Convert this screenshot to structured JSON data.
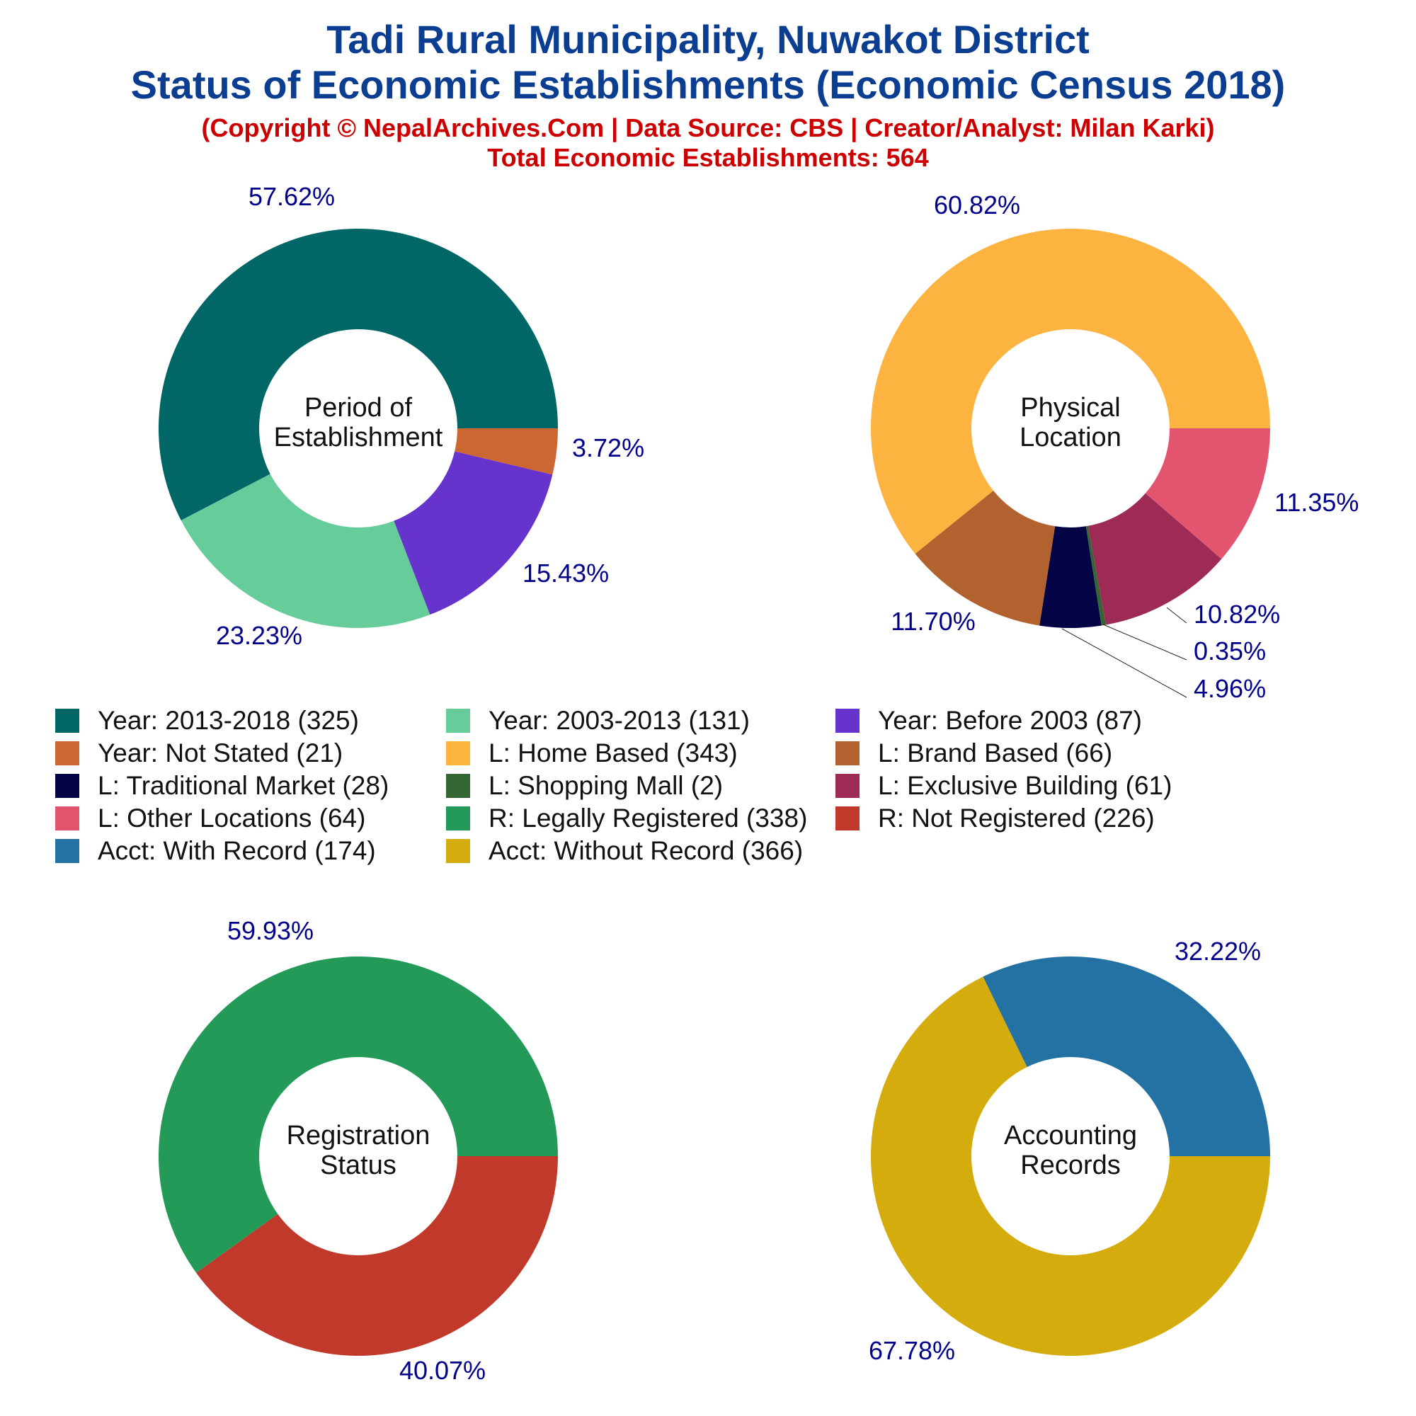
{
  "header": {
    "title_line1": "Tadi Rural Municipality, Nuwakot District",
    "title_line2": "Status of Economic Establishments (Economic Census 2018)",
    "credit": "(Copyright © NepalArchives.Com | Data Source: CBS | Creator/Analyst: Milan Karki)",
    "total": "Total Economic Establishments: 564"
  },
  "colors": {
    "title": "#0b3d91",
    "credit": "#cc0000",
    "percent_label": "#00008b"
  },
  "chart_data": [
    {
      "type": "pie",
      "style": "donut",
      "center_label": [
        "Period of",
        "Establishment"
      ],
      "slices": [
        {
          "label": "Year: 2013-2018",
          "value": 325,
          "percent": "57.62%",
          "color": "#016766"
        },
        {
          "label": "Year: 2003-2013",
          "value": 131,
          "percent": "23.23%",
          "color": "#66cc99"
        },
        {
          "label": "Year: Before 2003",
          "value": 87,
          "percent": "15.43%",
          "color": "#6633cc"
        },
        {
          "label": "Year: Not Stated",
          "value": 21,
          "percent": "3.72%",
          "color": "#cc6633"
        }
      ]
    },
    {
      "type": "pie",
      "style": "donut",
      "center_label": [
        "Physical",
        "Location"
      ],
      "slices": [
        {
          "label": "L: Home Based",
          "value": 343,
          "percent": "60.82%",
          "color": "#fcb33f"
        },
        {
          "label": "L: Brand Based",
          "value": 66,
          "percent": "11.70%",
          "color": "#b1622e"
        },
        {
          "label": "L: Traditional Market",
          "value": 28,
          "percent": "4.96%",
          "color": "#030346"
        },
        {
          "label": "L: Shopping Mall",
          "value": 2,
          "percent": "0.35%",
          "color": "#336633"
        },
        {
          "label": "L: Exclusive Building",
          "value": 61,
          "percent": "10.82%",
          "color": "#9e2a56"
        },
        {
          "label": "L: Other Locations",
          "value": 64,
          "percent": "11.35%",
          "color": "#e3546f"
        }
      ]
    },
    {
      "type": "pie",
      "style": "donut",
      "center_label": [
        "Registration",
        "Status"
      ],
      "slices": [
        {
          "label": "R: Legally Registered",
          "value": 338,
          "percent": "59.93%",
          "color": "#239a58"
        },
        {
          "label": "R: Not Registered",
          "value": 226,
          "percent": "40.07%",
          "color": "#c0392b"
        }
      ]
    },
    {
      "type": "pie",
      "style": "donut",
      "center_label": [
        "Accounting",
        "Records"
      ],
      "slices": [
        {
          "label": "Acct: With Record",
          "value": 174,
          "percent": "32.22%",
          "color": "#2471a3"
        },
        {
          "label": "Acct: Without Record",
          "value": 366,
          "percent": "67.78%",
          "color": "#d4ac0d"
        }
      ]
    }
  ],
  "legend": [
    {
      "text": "Year: 2013-2018 (325)",
      "color": "#016766"
    },
    {
      "text": "Year: 2003-2013 (131)",
      "color": "#66cc99"
    },
    {
      "text": "Year: Before 2003 (87)",
      "color": "#6633cc"
    },
    {
      "text": "Year: Not Stated (21)",
      "color": "#cc6633"
    },
    {
      "text": "L: Home Based (343)",
      "color": "#fcb33f"
    },
    {
      "text": "L: Brand Based (66)",
      "color": "#b1622e"
    },
    {
      "text": "L: Traditional Market (28)",
      "color": "#030346"
    },
    {
      "text": "L: Shopping Mall (2)",
      "color": "#336633"
    },
    {
      "text": "L: Exclusive Building (61)",
      "color": "#9e2a56"
    },
    {
      "text": "L: Other Locations (64)",
      "color": "#e3546f"
    },
    {
      "text": "R: Legally Registered (338)",
      "color": "#239a58"
    },
    {
      "text": "R: Not Registered (226)",
      "color": "#c0392b"
    },
    {
      "text": "Acct: With Record (174)",
      "color": "#2471a3"
    },
    {
      "text": "Acct: Without Record (366)",
      "color": "#d4ac0d"
    }
  ]
}
